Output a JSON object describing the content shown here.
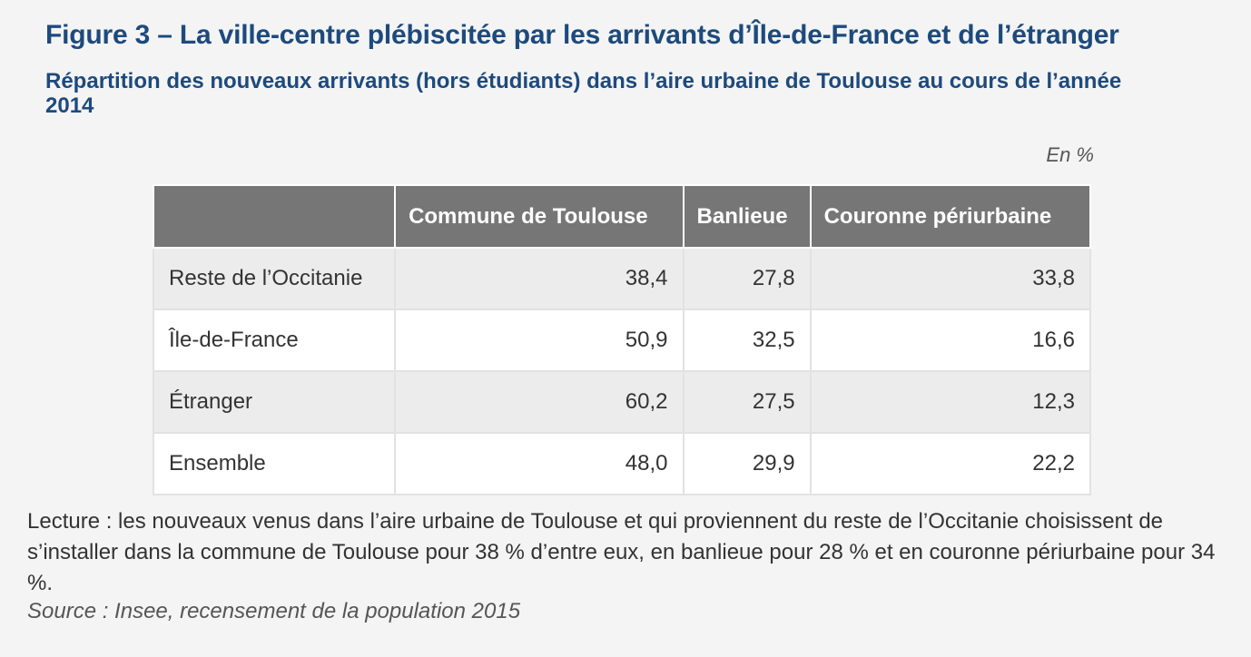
{
  "title": "Figure 3 – La ville-centre plébiscitée par les arrivants d’Île-de-France et de l’étranger",
  "subtitle": "Répartition des nouveaux arrivants (hors étudiants) dans l’aire urbaine de Toulouse au cours de l’année 2014",
  "unit": "En %",
  "table": {
    "headers": [
      "",
      "Commune de Toulouse",
      "Banlieue",
      "Couronne périurbaine"
    ],
    "rows": [
      {
        "label": "Reste de l’Occitanie",
        "values": [
          "38,4",
          "27,8",
          "33,8"
        ]
      },
      {
        "label": "Île-de-France",
        "values": [
          "50,9",
          "32,5",
          "16,6"
        ]
      },
      {
        "label": "Étranger",
        "values": [
          "60,2",
          "27,5",
          "12,3"
        ]
      },
      {
        "label": "Ensemble",
        "values": [
          "48,0",
          "29,9",
          "22,2"
        ]
      }
    ]
  },
  "reading": "Lecture : les nouveaux venus dans l’aire urbaine de Toulouse et qui proviennent du reste de l’Occitanie choisissent de s’installer dans la commune de Toulouse pour 38 % d’entre eux, en banlieue pour 28 % et en couronne périurbaine pour 34 %.",
  "source": "Source : Insee, recensement de la population 2015"
}
